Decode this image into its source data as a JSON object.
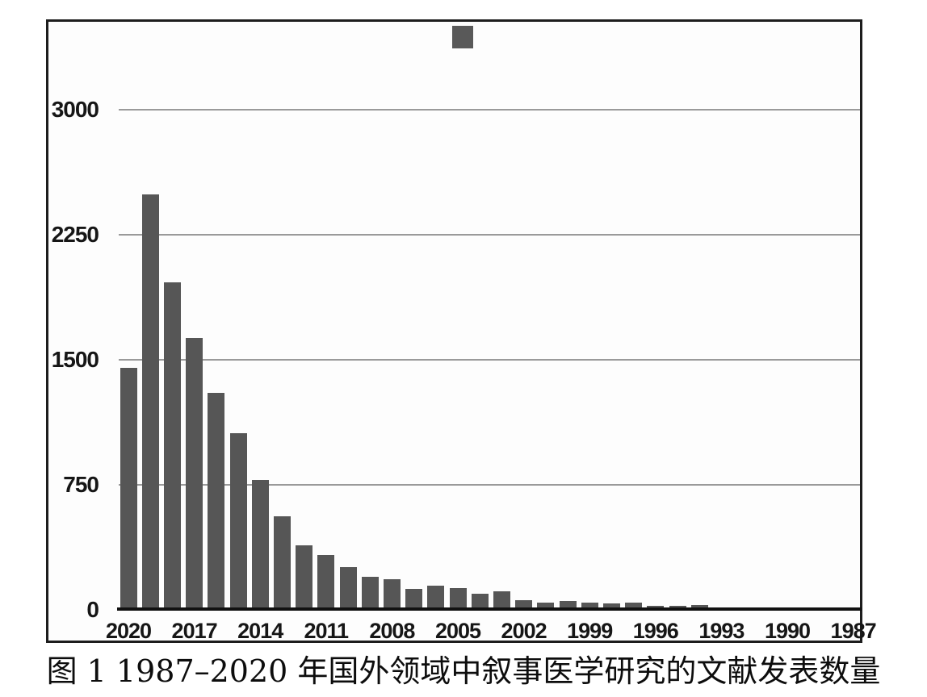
{
  "caption": {
    "text": "图 1 1987–2020 年国外领域中叙事医学研究的文献发表数量"
  },
  "colors": {
    "bar": "#565656",
    "legend_swatch": "#595959",
    "grid": "#9a9a9a",
    "axis": "#111111",
    "frame": "#1d1d1d",
    "tick_text": "#161616"
  },
  "chart_data": {
    "type": "bar",
    "title": "",
    "xlabel": "",
    "ylabel": "",
    "categories": [
      2020,
      2019,
      2018,
      2017,
      2016,
      2015,
      2014,
      2013,
      2012,
      2011,
      2010,
      2009,
      2008,
      2007,
      2006,
      2005,
      2004,
      2003,
      2002,
      2001,
      2000,
      1999,
      1998,
      1997,
      1996,
      1995,
      1994,
      1993,
      1992,
      1991,
      1990,
      1989,
      1988,
      1987
    ],
    "values": [
      1450,
      2490,
      1965,
      1630,
      1300,
      1060,
      780,
      560,
      385,
      330,
      255,
      200,
      185,
      125,
      145,
      132,
      98,
      112,
      60,
      45,
      52,
      42,
      40,
      44,
      22,
      26,
      30,
      0,
      0,
      0,
      0,
      0,
      0,
      0
    ],
    "x_tick_labels": [
      "2020",
      "2017",
      "2014",
      "2011",
      "2008",
      "2005",
      "2002",
      "1999",
      "1996",
      "1993",
      "1990",
      "1987"
    ],
    "x_tick_step": 3,
    "x_order": "descending-years-left-to-right",
    "y_ticks": [
      3000,
      2250,
      1500,
      750,
      0
    ],
    "ylim": [
      0,
      3530
    ],
    "grid": "horizontal",
    "legend": {
      "entries": 1,
      "label": "",
      "style": "swatch-only-top-center"
    }
  }
}
